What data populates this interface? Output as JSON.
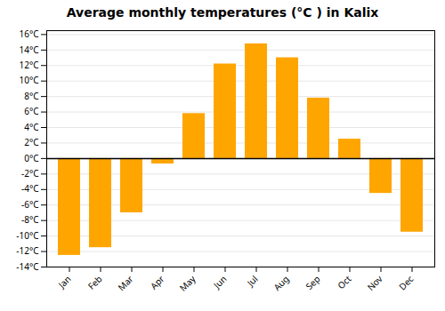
{
  "chart_data": {
    "type": "bar",
    "title": "Average monthly temperatures (°C ) in Kalix",
    "categories": [
      "Jan",
      "Feb",
      "Mar",
      "Apr",
      "May",
      "Jun",
      "Jul",
      "Aug",
      "Sep",
      "Oct",
      "Nov",
      "Dec"
    ],
    "values": [
      -12.5,
      -11.5,
      -7.0,
      -0.7,
      5.8,
      12.2,
      14.8,
      13.0,
      7.8,
      2.5,
      -4.5,
      -9.5
    ],
    "color": "#FFA500",
    "ylim": [
      -14,
      16.5
    ],
    "yticks": [
      {
        "value": -14,
        "label": "-14°C"
      },
      {
        "value": -12,
        "label": "-12°C"
      },
      {
        "value": -10,
        "label": "-10°C"
      },
      {
        "value": -8,
        "label": "-8°C"
      },
      {
        "value": -6,
        "label": "-6°C"
      },
      {
        "value": -4,
        "label": "-4°C"
      },
      {
        "value": -2,
        "label": "-2°C"
      },
      {
        "value": 0,
        "label": "0°C"
      },
      {
        "value": 2,
        "label": "2°C"
      },
      {
        "value": 4,
        "label": "4°C"
      },
      {
        "value": 6,
        "label": "6°C"
      },
      {
        "value": 8,
        "label": "8°C"
      },
      {
        "value": 10,
        "label": "10°C"
      },
      {
        "value": 12,
        "label": "12°C"
      },
      {
        "value": 14,
        "label": "14°C"
      },
      {
        "value": 16,
        "label": "16°C"
      }
    ],
    "grid": true
  }
}
